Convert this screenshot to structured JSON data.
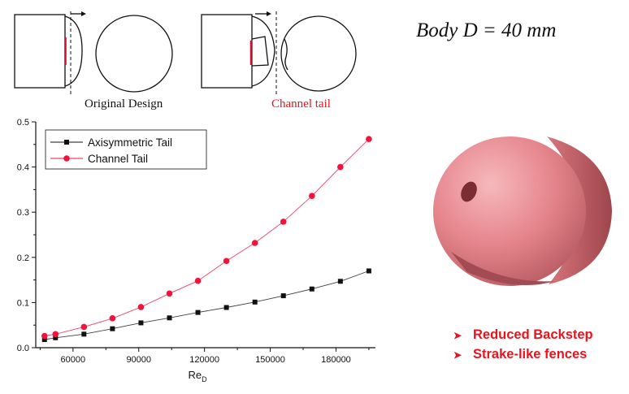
{
  "body_label": "Body D = 40 mm",
  "captions": {
    "original": "Original Design",
    "channel": "Channel tail"
  },
  "bullets": [
    "Reduced Backstep",
    "Strake-like fences"
  ],
  "colors": {
    "axisymmetric": "#111111",
    "channel": "#f0143c",
    "caption_channel": "#e8141d",
    "sphere": "#e8838a"
  },
  "chart_data": {
    "type": "line",
    "xlabel": "Re",
    "xlabel_sub": "D",
    "ylabel": "",
    "xlim": [
      43000,
      198000
    ],
    "ylim": [
      0,
      0.5
    ],
    "xticks": [
      60000,
      90000,
      120000,
      150000,
      180000
    ],
    "yticks": [
      0.0,
      0.1,
      0.2,
      0.3,
      0.4,
      0.5
    ],
    "legend": "top-left",
    "grid": false,
    "series": [
      {
        "name": "Axisymmetric Tail",
        "marker": "square",
        "x": [
          47000,
          52000,
          65000,
          78000,
          91000,
          104000,
          117000,
          130000,
          143000,
          156000,
          169000,
          182000,
          195000
        ],
        "y": [
          0.018,
          0.022,
          0.03,
          0.042,
          0.055,
          0.066,
          0.078,
          0.089,
          0.101,
          0.115,
          0.13,
          0.147,
          0.17
        ]
      },
      {
        "name": "Channel Tail",
        "marker": "circle",
        "x": [
          47000,
          52000,
          65000,
          78000,
          91000,
          104000,
          117000,
          130000,
          143000,
          156000,
          169000,
          182000,
          195000
        ],
        "y": [
          0.026,
          0.03,
          0.046,
          0.065,
          0.09,
          0.12,
          0.148,
          0.192,
          0.232,
          0.279,
          0.336,
          0.4,
          0.462
        ]
      }
    ]
  }
}
